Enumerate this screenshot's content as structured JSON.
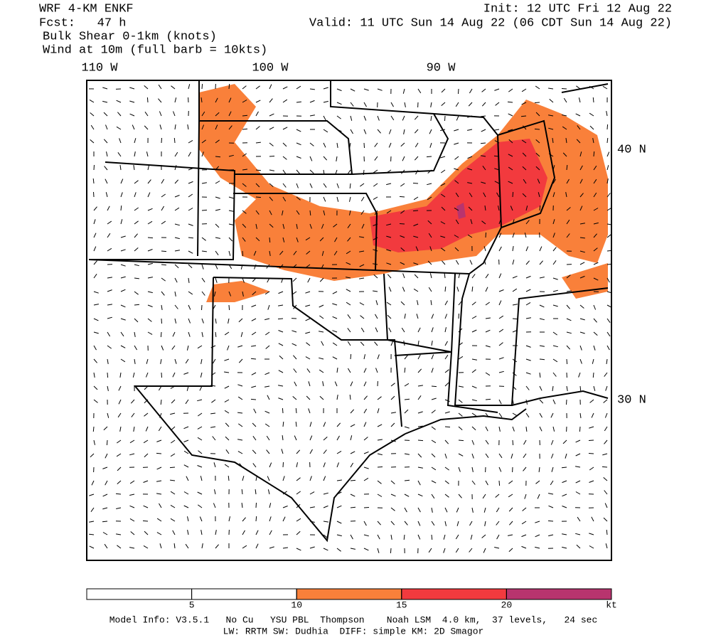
{
  "header": {
    "model": "WRF 4-KM ENKF",
    "forecast": "Fcst:   47 h",
    "field": "Bulk Shear 0-1km (knots)",
    "wind": "Wind at 10m (full barb = 10kts)",
    "init": "Init: 12 UTC Fri 12 Aug 22",
    "valid": "Valid: 11 UTC Sun 14 Aug 22 (06 CDT Sun 14 Aug 22)"
  },
  "map": {
    "lon_labels": [
      "110 W",
      "100 W",
      "90 W"
    ],
    "lat_labels": [
      "40 N",
      "30 N"
    ]
  },
  "colorbar": {
    "ticks": [
      5,
      10,
      15,
      20
    ],
    "unit": "kt",
    "colors": [
      "#ffffff",
      "#ffffff",
      "#f9803a",
      "#f23a3e",
      "#b8346e"
    ]
  },
  "footer": {
    "line1": "Model Info: V3.5.1   No Cu   YSU PBL  Thompson    Noah LSM  4.0 km,  37 levels,   24 sec",
    "line2": "LW: RRTM SW: Dudhia  DIFF: simple KM: 2D Smagor"
  }
}
